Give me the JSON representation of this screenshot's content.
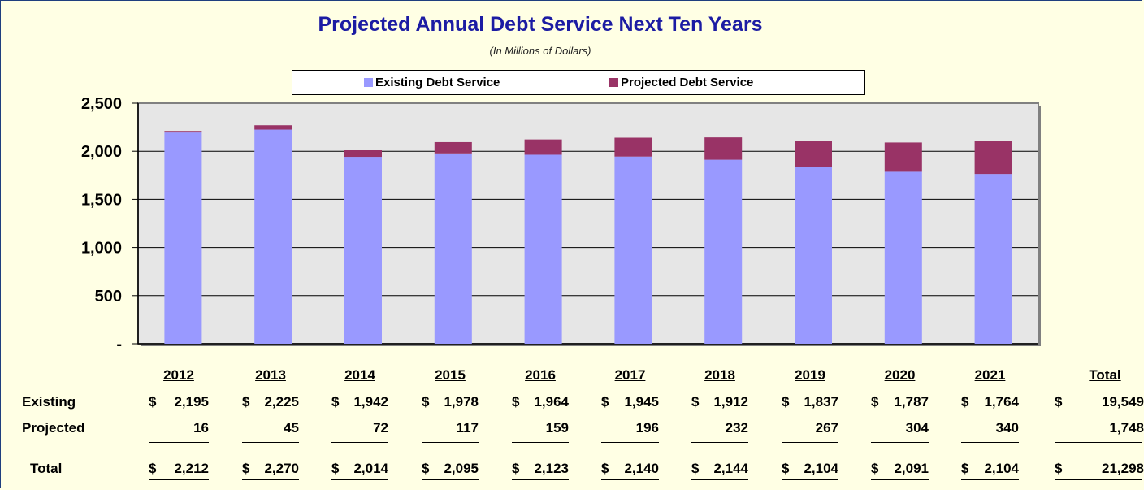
{
  "chart_data": {
    "type": "bar",
    "stacked": true,
    "title": "Projected Annual Debt Service Next Ten Years",
    "subtitle": "(In Millions of Dollars)",
    "categories": [
      "2012",
      "2013",
      "2014",
      "2015",
      "2016",
      "2017",
      "2018",
      "2019",
      "2020",
      "2021"
    ],
    "series": [
      {
        "name": "Existing Debt Service",
        "values": [
          2195,
          2225,
          1942,
          1978,
          1964,
          1945,
          1912,
          1837,
          1787,
          1764
        ],
        "color": "#9999ff"
      },
      {
        "name": "Projected Debt Service",
        "values": [
          16,
          45,
          72,
          117,
          159,
          196,
          232,
          267,
          304,
          340
        ],
        "color": "#993366"
      }
    ],
    "ylim": [
      0,
      2500
    ],
    "yticks": [
      {
        "value": 0,
        "label": "-"
      },
      {
        "value": 500,
        "label": "500"
      },
      {
        "value": 1000,
        "label": "1,000"
      },
      {
        "value": 1500,
        "label": "1,500"
      },
      {
        "value": 2000,
        "label": "2,000"
      },
      {
        "value": 2500,
        "label": "2,500"
      }
    ],
    "grid": true,
    "legend_position": "top"
  },
  "table": {
    "headers": [
      "2012",
      "2013",
      "2014",
      "2015",
      "2016",
      "2017",
      "2018",
      "2019",
      "2020",
      "2021",
      "Total"
    ],
    "currency": "$",
    "rows": [
      {
        "label": "Existing",
        "currency": true,
        "values": [
          "2,195",
          "2,225",
          "1,942",
          "1,978",
          "1,964",
          "1,945",
          "1,912",
          "1,837",
          "1,787",
          "1,764",
          "19,549"
        ]
      },
      {
        "label": "Projected",
        "currency": false,
        "values": [
          "16",
          "45",
          "72",
          "117",
          "159",
          "196",
          "232",
          "267",
          "304",
          "340",
          "1,748"
        ]
      },
      {
        "label": "Total",
        "currency": true,
        "values": [
          "2,212",
          "2,270",
          "2,014",
          "2,095",
          "2,123",
          "2,140",
          "2,144",
          "2,104",
          "2,091",
          "2,104",
          "21,298"
        ]
      }
    ]
  },
  "colors": {
    "background": "#ffffe4",
    "plot_area": "#e6e6e6",
    "title": "#1c1ca3"
  }
}
